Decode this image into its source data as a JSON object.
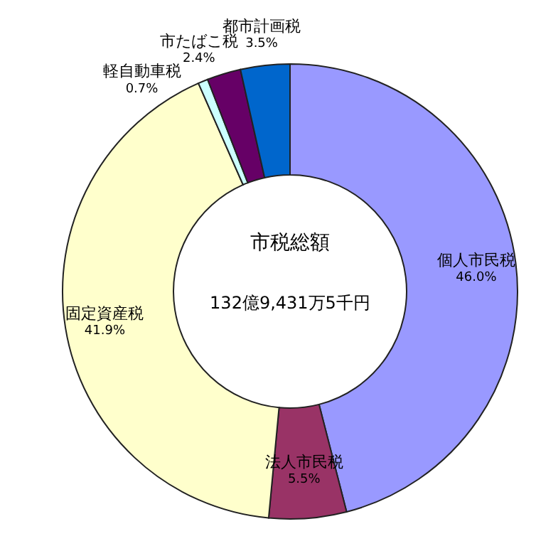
{
  "chart_data": {
    "type": "donut",
    "categories": [
      "個人市民税",
      "法人市民税",
      "固定資産税",
      "軽自動車税",
      "市たばこ税",
      "都市計画税"
    ],
    "values": [
      46.0,
      5.5,
      41.9,
      0.7,
      2.4,
      3.5
    ],
    "value_labels": [
      "46.0%",
      "5.5%",
      "41.9%",
      "0.7%",
      "2.4%",
      "3.5%"
    ],
    "colors": [
      "#9999ff",
      "#993366",
      "#ffffcc",
      "#ccffff",
      "#660066",
      "#0066cc"
    ],
    "annotations": [
      "市税総額",
      "132億9,431万5千円"
    ]
  }
}
